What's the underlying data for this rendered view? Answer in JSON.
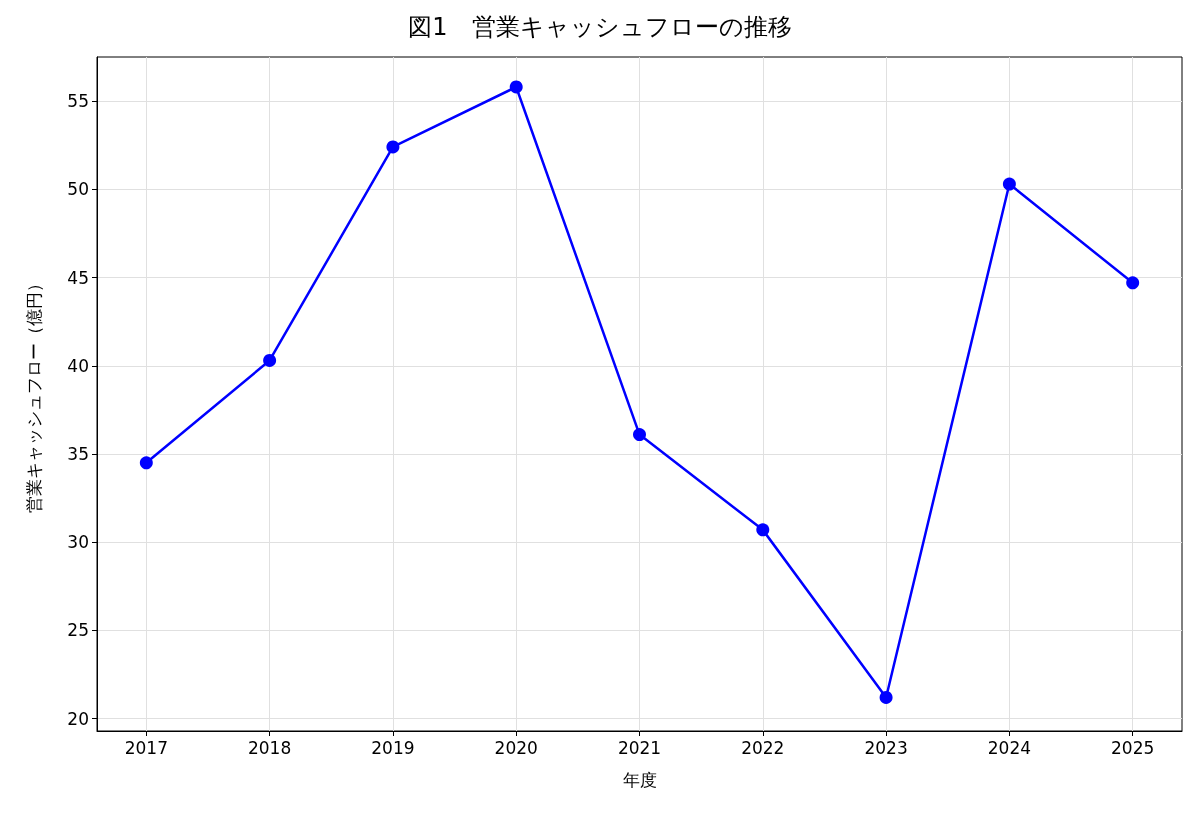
{
  "chart_data": {
    "type": "line",
    "title": "図1　営業キャッシュフローの推移",
    "xlabel": "年度",
    "ylabel": "営業キャッシュフロー（億円）",
    "x": [
      2017,
      2018,
      2019,
      2020,
      2021,
      2022,
      2023,
      2024,
      2025
    ],
    "series": [
      {
        "color": "#0000ff",
        "values": [
          34.5,
          40.3,
          52.4,
          55.8,
          36.1,
          30.7,
          21.2,
          50.3,
          44.7
        ]
      }
    ],
    "xlim": [
      2016.6,
      2025.4
    ],
    "xticks": [
      2017,
      2018,
      2019,
      2020,
      2021,
      2022,
      2023,
      2024,
      2025
    ],
    "ylim": [
      19.3,
      57.5
    ],
    "yticks": [
      20,
      25,
      30,
      35,
      40,
      45,
      50,
      55
    ],
    "grid": true,
    "marker": "circle",
    "line_style": "solid"
  }
}
